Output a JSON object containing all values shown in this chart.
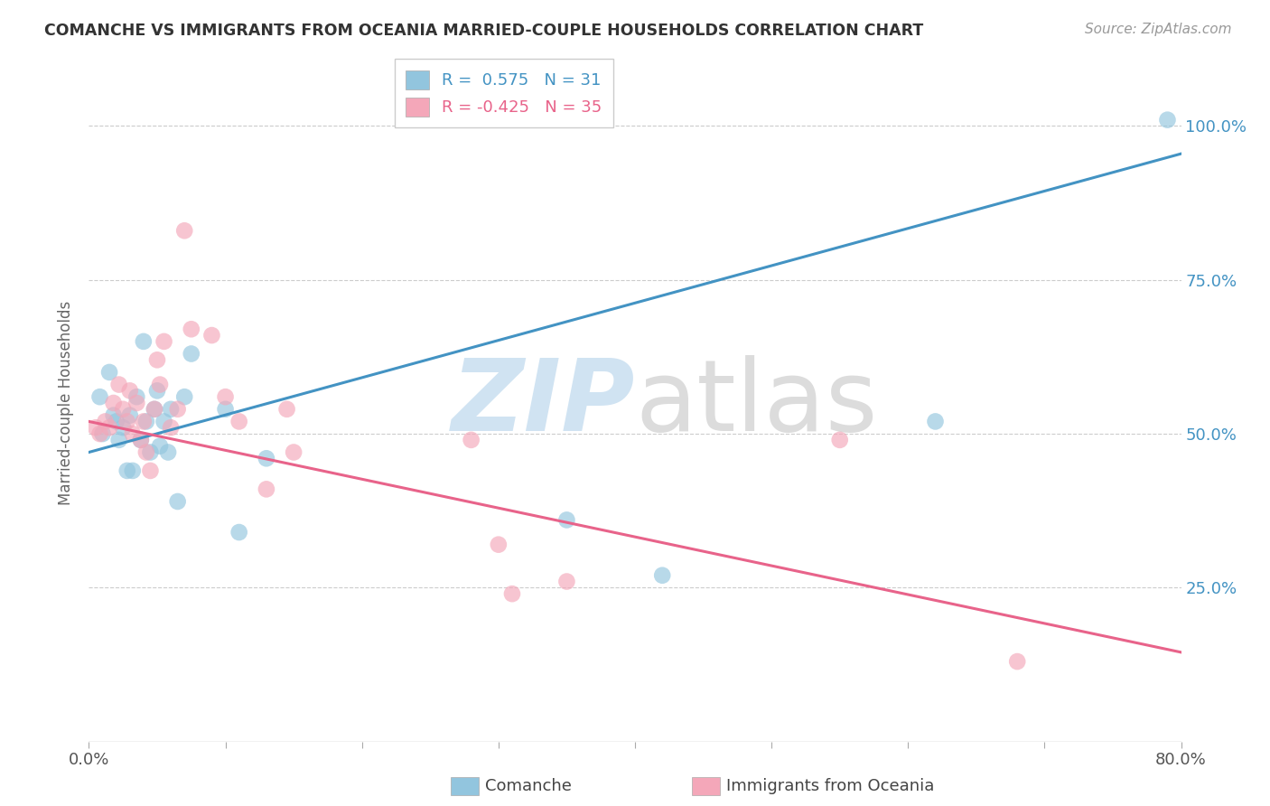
{
  "title": "COMANCHE VS IMMIGRANTS FROM OCEANIA MARRIED-COUPLE HOUSEHOLDS CORRELATION CHART",
  "source": "Source: ZipAtlas.com",
  "ylabel": "Married-couple Households",
  "xlim": [
    0.0,
    0.8
  ],
  "ylim": [
    0.0,
    1.1
  ],
  "yticks": [
    0.25,
    0.5,
    0.75,
    1.0
  ],
  "ytick_labels": [
    "25.0%",
    "50.0%",
    "75.0%",
    "100.0%"
  ],
  "xticks": [
    0.0,
    0.1,
    0.2,
    0.3,
    0.4,
    0.5,
    0.6,
    0.7,
    0.8
  ],
  "blue_R": 0.575,
  "blue_N": 31,
  "pink_R": -0.425,
  "pink_N": 35,
  "blue_color": "#92c5de",
  "pink_color": "#f4a7b9",
  "blue_line_color": "#4393c3",
  "pink_line_color": "#e8638a",
  "blue_line_x0": 0.0,
  "blue_line_y0": 0.47,
  "blue_line_x1": 0.8,
  "blue_line_y1": 0.955,
  "pink_line_x0": 0.0,
  "pink_line_y0": 0.52,
  "pink_line_x1": 0.8,
  "pink_line_y1": 0.145,
  "blue_scatter_x": [
    0.008,
    0.01,
    0.015,
    0.018,
    0.02,
    0.022,
    0.025,
    0.028,
    0.03,
    0.032,
    0.035,
    0.038,
    0.04,
    0.042,
    0.045,
    0.048,
    0.05,
    0.052,
    0.055,
    0.058,
    0.06,
    0.065,
    0.07,
    0.075,
    0.1,
    0.11,
    0.13,
    0.35,
    0.42,
    0.62,
    0.79
  ],
  "blue_scatter_y": [
    0.56,
    0.5,
    0.6,
    0.53,
    0.52,
    0.49,
    0.51,
    0.44,
    0.53,
    0.44,
    0.56,
    0.49,
    0.65,
    0.52,
    0.47,
    0.54,
    0.57,
    0.48,
    0.52,
    0.47,
    0.54,
    0.39,
    0.56,
    0.63,
    0.54,
    0.34,
    0.46,
    0.36,
    0.27,
    0.52,
    1.01
  ],
  "pink_scatter_x": [
    0.005,
    0.008,
    0.012,
    0.015,
    0.018,
    0.022,
    0.025,
    0.028,
    0.03,
    0.032,
    0.035,
    0.038,
    0.04,
    0.042,
    0.045,
    0.048,
    0.05,
    0.052,
    0.055,
    0.06,
    0.065,
    0.07,
    0.075,
    0.09,
    0.1,
    0.11,
    0.13,
    0.145,
    0.15,
    0.28,
    0.3,
    0.31,
    0.35,
    0.55,
    0.68
  ],
  "pink_scatter_y": [
    0.51,
    0.5,
    0.52,
    0.51,
    0.55,
    0.58,
    0.54,
    0.52,
    0.57,
    0.5,
    0.55,
    0.49,
    0.52,
    0.47,
    0.44,
    0.54,
    0.62,
    0.58,
    0.65,
    0.51,
    0.54,
    0.83,
    0.67,
    0.66,
    0.56,
    0.52,
    0.41,
    0.54,
    0.47,
    0.49,
    0.32,
    0.24,
    0.26,
    0.49,
    0.13
  ],
  "watermark_zip": "ZIP",
  "watermark_atlas": "atlas",
  "background_color": "#ffffff",
  "grid_color": "#cccccc"
}
